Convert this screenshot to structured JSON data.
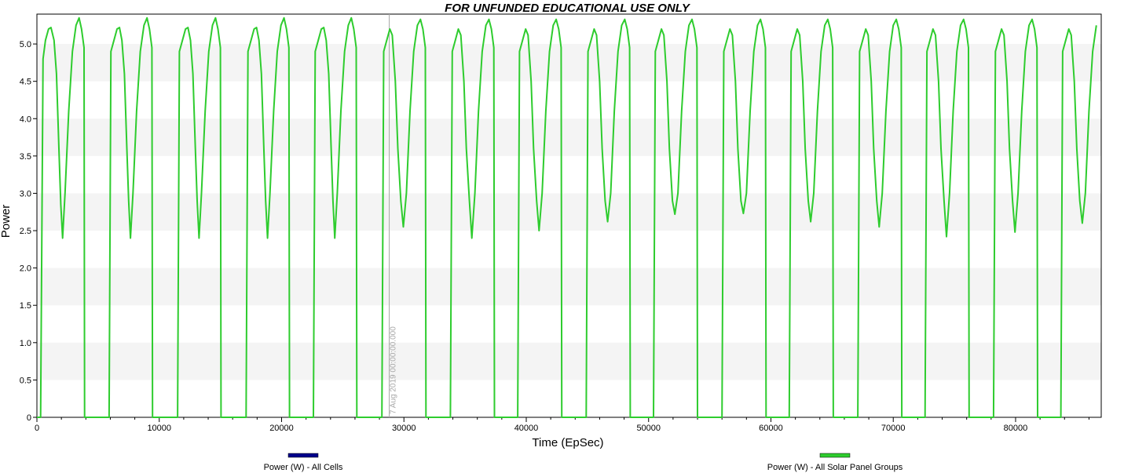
{
  "chart_data": {
    "type": "line",
    "title": "FOR UNFUNDED EDUCATIONAL USE ONLY",
    "xlabel": "Time (EpSec)",
    "ylabel": "Power",
    "xlim": [
      0,
      87000
    ],
    "ylim": [
      0,
      5.4
    ],
    "x_ticks": [
      0,
      10000,
      20000,
      30000,
      40000,
      50000,
      60000,
      70000,
      80000
    ],
    "x_tick_labels": [
      "0",
      "10000",
      "20000",
      "30000",
      "40000",
      "50000",
      "60000",
      "70000",
      "80000"
    ],
    "y_ticks": [
      0,
      0.5,
      1.0,
      1.5,
      2.0,
      2.5,
      3.0,
      3.5,
      4.0,
      4.5,
      5.0
    ],
    "y_tick_labels": [
      "0",
      "0.5",
      "1.0",
      "1.5",
      "2.0",
      "2.5",
      "3.0",
      "3.5",
      "4.0",
      "4.5",
      "5.0"
    ],
    "grid": "alternating horizontal bands",
    "marker": {
      "x": 28800,
      "label": "7 Aug 2019 00:00:00.000"
    },
    "legend_position": "bottom",
    "series": [
      {
        "name": "Power (W) - All Cells",
        "color": "#00008b",
        "points": []
      },
      {
        "name": "Power (W) - All Solar Panel Groups",
        "color": "#2ecc2e",
        "points": [
          [
            0,
            0
          ],
          [
            300,
            0
          ],
          [
            500,
            4.8
          ],
          [
            700,
            5.05
          ],
          [
            950,
            5.2
          ],
          [
            1150,
            5.22
          ],
          [
            1400,
            5.05
          ],
          [
            1600,
            4.6
          ],
          [
            1800,
            3.6
          ],
          [
            1950,
            2.85
          ],
          [
            2100,
            2.4
          ],
          [
            2300,
            3.0
          ],
          [
            2600,
            4.1
          ],
          [
            2900,
            4.9
          ],
          [
            3200,
            5.25
          ],
          [
            3450,
            5.35
          ],
          [
            3650,
            5.2
          ],
          [
            3850,
            4.95
          ],
          [
            3900,
            0
          ],
          [
            5900,
            0
          ],
          [
            6050,
            4.9
          ],
          [
            6300,
            5.05
          ],
          [
            6550,
            5.2
          ],
          [
            6750,
            5.22
          ],
          [
            6950,
            5.05
          ],
          [
            7150,
            4.6
          ],
          [
            7350,
            3.6
          ],
          [
            7500,
            2.9
          ],
          [
            7650,
            2.4
          ],
          [
            7850,
            3.0
          ],
          [
            8150,
            4.1
          ],
          [
            8450,
            4.9
          ],
          [
            8750,
            5.25
          ],
          [
            9000,
            5.35
          ],
          [
            9200,
            5.2
          ],
          [
            9400,
            4.95
          ],
          [
            9450,
            0
          ],
          [
            11500,
            0
          ],
          [
            11650,
            4.9
          ],
          [
            11900,
            5.05
          ],
          [
            12150,
            5.2
          ],
          [
            12350,
            5.22
          ],
          [
            12550,
            5.05
          ],
          [
            12750,
            4.6
          ],
          [
            12950,
            3.6
          ],
          [
            13100,
            2.9
          ],
          [
            13250,
            2.4
          ],
          [
            13450,
            3.0
          ],
          [
            13750,
            4.1
          ],
          [
            14050,
            4.9
          ],
          [
            14350,
            5.25
          ],
          [
            14600,
            5.35
          ],
          [
            14800,
            5.2
          ],
          [
            15000,
            4.95
          ],
          [
            15050,
            0
          ],
          [
            17100,
            0
          ],
          [
            17250,
            4.9
          ],
          [
            17500,
            5.05
          ],
          [
            17750,
            5.2
          ],
          [
            17950,
            5.22
          ],
          [
            18150,
            5.05
          ],
          [
            18350,
            4.6
          ],
          [
            18550,
            3.6
          ],
          [
            18700,
            2.9
          ],
          [
            18850,
            2.4
          ],
          [
            19050,
            3.0
          ],
          [
            19350,
            4.1
          ],
          [
            19650,
            4.9
          ],
          [
            19950,
            5.25
          ],
          [
            20200,
            5.35
          ],
          [
            20400,
            5.2
          ],
          [
            20600,
            4.95
          ],
          [
            20650,
            0
          ],
          [
            22600,
            0
          ],
          [
            22750,
            4.9
          ],
          [
            23000,
            5.05
          ],
          [
            23250,
            5.2
          ],
          [
            23450,
            5.22
          ],
          [
            23650,
            5.05
          ],
          [
            23850,
            4.6
          ],
          [
            24050,
            3.6
          ],
          [
            24200,
            2.9
          ],
          [
            24350,
            2.4
          ],
          [
            24550,
            3.0
          ],
          [
            24850,
            4.1
          ],
          [
            25150,
            4.9
          ],
          [
            25450,
            5.25
          ],
          [
            25700,
            5.35
          ],
          [
            25900,
            5.2
          ],
          [
            26100,
            4.95
          ],
          [
            26150,
            0
          ],
          [
            28200,
            0
          ],
          [
            28350,
            4.9
          ],
          [
            28600,
            5.05
          ],
          [
            28850,
            5.2
          ],
          [
            29050,
            5.12
          ],
          [
            29300,
            4.5
          ],
          [
            29500,
            3.6
          ],
          [
            29750,
            2.9
          ],
          [
            29950,
            2.55
          ],
          [
            30200,
            3.0
          ],
          [
            30500,
            4.1
          ],
          [
            30800,
            4.9
          ],
          [
            31100,
            5.25
          ],
          [
            31350,
            5.33
          ],
          [
            31550,
            5.2
          ],
          [
            31750,
            4.95
          ],
          [
            31800,
            0
          ],
          [
            33800,
            0
          ],
          [
            33950,
            4.9
          ],
          [
            34200,
            5.05
          ],
          [
            34450,
            5.2
          ],
          [
            34650,
            5.12
          ],
          [
            34900,
            4.5
          ],
          [
            35100,
            3.6
          ],
          [
            35350,
            2.9
          ],
          [
            35550,
            2.4
          ],
          [
            35800,
            3.0
          ],
          [
            36100,
            4.1
          ],
          [
            36400,
            4.9
          ],
          [
            36700,
            5.25
          ],
          [
            36950,
            5.33
          ],
          [
            37150,
            5.2
          ],
          [
            37350,
            4.95
          ],
          [
            37400,
            0
          ],
          [
            39300,
            0
          ],
          [
            39450,
            4.9
          ],
          [
            39700,
            5.05
          ],
          [
            39950,
            5.2
          ],
          [
            40150,
            5.12
          ],
          [
            40400,
            4.5
          ],
          [
            40600,
            3.6
          ],
          [
            40850,
            2.9
          ],
          [
            41050,
            2.5
          ],
          [
            41300,
            3.0
          ],
          [
            41600,
            4.1
          ],
          [
            41900,
            4.9
          ],
          [
            42200,
            5.25
          ],
          [
            42450,
            5.33
          ],
          [
            42650,
            5.2
          ],
          [
            42850,
            4.95
          ],
          [
            42900,
            0
          ],
          [
            44900,
            0
          ],
          [
            45050,
            4.9
          ],
          [
            45300,
            5.05
          ],
          [
            45550,
            5.2
          ],
          [
            45750,
            5.12
          ],
          [
            46000,
            4.5
          ],
          [
            46200,
            3.6
          ],
          [
            46450,
            2.9
          ],
          [
            46650,
            2.62
          ],
          [
            46900,
            3.0
          ],
          [
            47200,
            4.1
          ],
          [
            47500,
            4.9
          ],
          [
            47800,
            5.25
          ],
          [
            48050,
            5.33
          ],
          [
            48250,
            5.2
          ],
          [
            48450,
            4.95
          ],
          [
            48500,
            0
          ],
          [
            50400,
            0
          ],
          [
            50550,
            4.9
          ],
          [
            50800,
            5.05
          ],
          [
            51050,
            5.2
          ],
          [
            51250,
            5.12
          ],
          [
            51500,
            4.5
          ],
          [
            51700,
            3.6
          ],
          [
            51950,
            2.9
          ],
          [
            52150,
            2.72
          ],
          [
            52400,
            3.0
          ],
          [
            52700,
            4.1
          ],
          [
            53000,
            4.9
          ],
          [
            53300,
            5.25
          ],
          [
            53550,
            5.33
          ],
          [
            53750,
            5.2
          ],
          [
            53950,
            4.95
          ],
          [
            54000,
            0
          ],
          [
            56000,
            0
          ],
          [
            56150,
            4.9
          ],
          [
            56400,
            5.05
          ],
          [
            56650,
            5.2
          ],
          [
            56850,
            5.12
          ],
          [
            57100,
            4.5
          ],
          [
            57300,
            3.6
          ],
          [
            57550,
            2.9
          ],
          [
            57750,
            2.73
          ],
          [
            58000,
            3.0
          ],
          [
            58300,
            4.1
          ],
          [
            58600,
            4.9
          ],
          [
            58900,
            5.25
          ],
          [
            59150,
            5.33
          ],
          [
            59350,
            5.2
          ],
          [
            59550,
            4.95
          ],
          [
            59600,
            0
          ],
          [
            61500,
            0
          ],
          [
            61650,
            4.9
          ],
          [
            61900,
            5.05
          ],
          [
            62150,
            5.2
          ],
          [
            62350,
            5.12
          ],
          [
            62600,
            4.5
          ],
          [
            62800,
            3.6
          ],
          [
            63050,
            2.9
          ],
          [
            63250,
            2.62
          ],
          [
            63500,
            3.0
          ],
          [
            63800,
            4.1
          ],
          [
            64100,
            4.9
          ],
          [
            64400,
            5.25
          ],
          [
            64650,
            5.33
          ],
          [
            64850,
            5.2
          ],
          [
            65050,
            4.95
          ],
          [
            65100,
            0
          ],
          [
            67100,
            0
          ],
          [
            67250,
            4.9
          ],
          [
            67500,
            5.05
          ],
          [
            67750,
            5.2
          ],
          [
            67950,
            5.12
          ],
          [
            68200,
            4.5
          ],
          [
            68400,
            3.6
          ],
          [
            68650,
            2.9
          ],
          [
            68850,
            2.55
          ],
          [
            69100,
            3.0
          ],
          [
            69400,
            4.1
          ],
          [
            69700,
            4.9
          ],
          [
            70000,
            5.25
          ],
          [
            70250,
            5.33
          ],
          [
            70450,
            5.2
          ],
          [
            70650,
            4.95
          ],
          [
            70700,
            0
          ],
          [
            72600,
            0
          ],
          [
            72750,
            4.9
          ],
          [
            73000,
            5.05
          ],
          [
            73250,
            5.2
          ],
          [
            73450,
            5.12
          ],
          [
            73700,
            4.5
          ],
          [
            73900,
            3.6
          ],
          [
            74150,
            2.9
          ],
          [
            74350,
            2.42
          ],
          [
            74600,
            3.0
          ],
          [
            74900,
            4.1
          ],
          [
            75200,
            4.9
          ],
          [
            75500,
            5.25
          ],
          [
            75750,
            5.33
          ],
          [
            75950,
            5.2
          ],
          [
            76150,
            4.95
          ],
          [
            76200,
            0
          ],
          [
            78200,
            0
          ],
          [
            78350,
            4.9
          ],
          [
            78600,
            5.05
          ],
          [
            78850,
            5.2
          ],
          [
            79050,
            5.12
          ],
          [
            79300,
            4.5
          ],
          [
            79500,
            3.6
          ],
          [
            79750,
            2.9
          ],
          [
            79950,
            2.48
          ],
          [
            80200,
            3.0
          ],
          [
            80500,
            4.1
          ],
          [
            80800,
            4.9
          ],
          [
            81100,
            5.25
          ],
          [
            81350,
            5.33
          ],
          [
            81550,
            5.2
          ],
          [
            81750,
            4.95
          ],
          [
            81800,
            0
          ],
          [
            83700,
            0
          ],
          [
            83850,
            4.9
          ],
          [
            84100,
            5.05
          ],
          [
            84350,
            5.2
          ],
          [
            84550,
            5.12
          ],
          [
            84800,
            4.5
          ],
          [
            85000,
            3.6
          ],
          [
            85250,
            2.9
          ],
          [
            85450,
            2.6
          ],
          [
            85700,
            3.0
          ],
          [
            86000,
            4.1
          ],
          [
            86300,
            4.9
          ],
          [
            86600,
            5.25
          ]
        ]
      }
    ]
  }
}
